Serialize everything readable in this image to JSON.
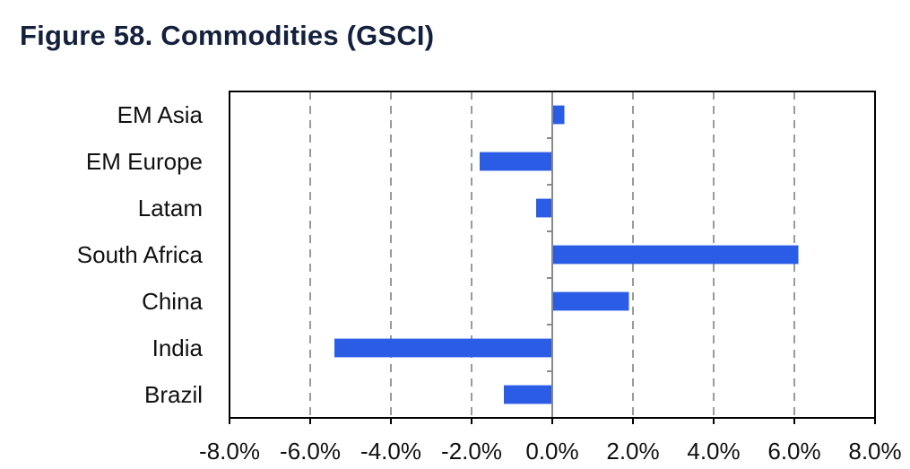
{
  "title": "Figure 58. Commodities (GSCI)",
  "colors": {
    "bar": "#2b5ce6",
    "grid": "#9a9a9a",
    "axis": "#000000",
    "title": "#14213d"
  },
  "chart_data": {
    "type": "bar",
    "orientation": "horizontal",
    "categories": [
      "EM Asia",
      "EM Europe",
      "Latam",
      "South Africa",
      "China",
      "India",
      "Brazil"
    ],
    "values": [
      0.3,
      -1.8,
      -0.4,
      6.1,
      1.9,
      -5.4,
      -1.2
    ],
    "value_unit": "%",
    "xlim": [
      -8,
      8
    ],
    "xticks": [
      "-8.0%",
      "-6.0%",
      "-4.0%",
      "-2.0%",
      "0.0%",
      "2.0%",
      "4.0%",
      "6.0%",
      "8.0%"
    ],
    "grid": "vertical dashed",
    "legend": "none"
  }
}
